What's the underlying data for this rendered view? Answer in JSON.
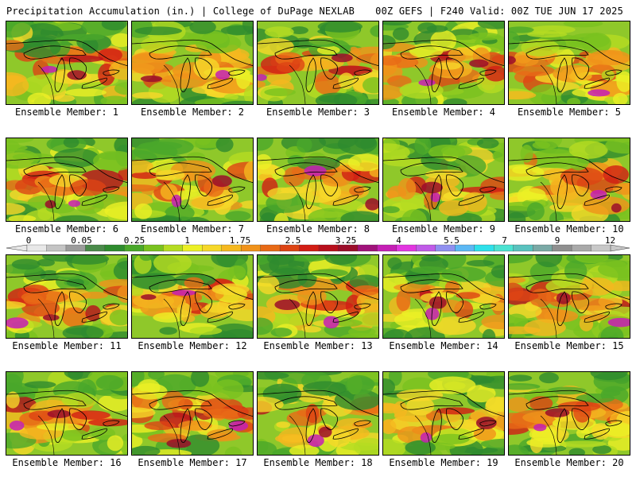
{
  "header": {
    "left": "Precipitation Accumulation (in.) | College of DuPage NEXLAB",
    "right": "00Z GEFS | F240 Valid: 00Z TUE JUN 17 2025"
  },
  "colorbar": {
    "labels": [
      "0",
      "0.05",
      "0.25",
      "1",
      "1.75",
      "2.5",
      "3.25",
      "4",
      "5.5",
      "7",
      "9",
      "12"
    ],
    "colors": [
      "#e8e8e8",
      "#c4c4c4",
      "#9c9c9c",
      "#4a8a4a",
      "#2e8b2e",
      "#4aa82a",
      "#79c21f",
      "#b5dc22",
      "#ecf026",
      "#f6d829",
      "#f5b81f",
      "#f0921a",
      "#e86a16",
      "#dd4414",
      "#d21d14",
      "#b80f1c",
      "#9b0d2a",
      "#a0127a",
      "#c51fb5",
      "#e236e0",
      "#c05be8",
      "#8f8fef",
      "#5cb8f4",
      "#2ee0ea",
      "#4ce3d2",
      "#59c2bf",
      "#7aa9a6",
      "#8f8f8f",
      "#a9a9a9",
      "#c8c8c8"
    ]
  },
  "panels": [
    {
      "member": 1,
      "caption": "Ensemble Member: 1"
    },
    {
      "member": 2,
      "caption": "Ensemble Member: 2"
    },
    {
      "member": 3,
      "caption": "Ensemble Member: 3"
    },
    {
      "member": 4,
      "caption": "Ensemble Member: 4"
    },
    {
      "member": 5,
      "caption": "Ensemble Member: 5"
    },
    {
      "member": 6,
      "caption": "Ensemble Member: 6"
    },
    {
      "member": 7,
      "caption": "Ensemble Member: 7"
    },
    {
      "member": 8,
      "caption": "Ensemble Member: 8"
    },
    {
      "member": 9,
      "caption": "Ensemble Member: 9"
    },
    {
      "member": 10,
      "caption": "Ensemble Member: 10"
    },
    {
      "member": 11,
      "caption": "Ensemble Member: 11"
    },
    {
      "member": 12,
      "caption": "Ensemble Member: 12"
    },
    {
      "member": 13,
      "caption": "Ensemble Member: 13"
    },
    {
      "member": 14,
      "caption": "Ensemble Member: 14"
    },
    {
      "member": 15,
      "caption": "Ensemble Member: 15"
    },
    {
      "member": 16,
      "caption": "Ensemble Member: 16"
    },
    {
      "member": 17,
      "caption": "Ensemble Member: 17"
    },
    {
      "member": 18,
      "caption": "Ensemble Member: 18"
    },
    {
      "member": 19,
      "caption": "Ensemble Member: 19"
    },
    {
      "member": 20,
      "caption": "Ensemble Member: 20"
    }
  ]
}
